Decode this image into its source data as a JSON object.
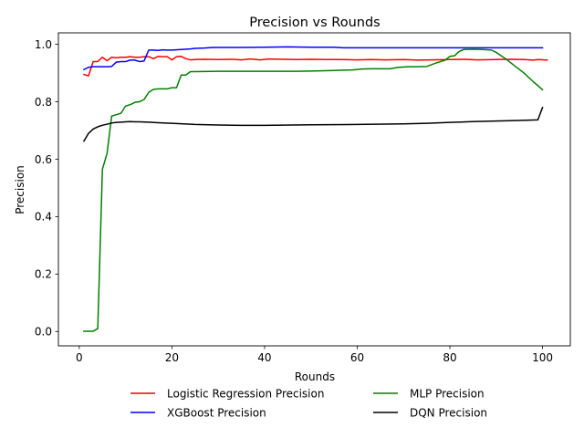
{
  "chart_data": {
    "type": "line",
    "title": "Precision vs Rounds",
    "xlabel": "Rounds",
    "ylabel": "Precision",
    "xlim": [
      -4.5,
      106
    ],
    "ylim": [
      -0.05,
      1.04
    ],
    "xticks": [
      0,
      20,
      40,
      60,
      80,
      100
    ],
    "yticks": [
      0.0,
      0.2,
      0.4,
      0.6,
      0.8,
      1.0
    ],
    "xtick_labels": [
      "0",
      "20",
      "40",
      "60",
      "80",
      "100"
    ],
    "ytick_labels": [
      "0.0",
      "0.2",
      "0.4",
      "0.6",
      "0.8",
      "1.0"
    ],
    "grid": false,
    "legend_position": "below plot, two columns",
    "series": [
      {
        "name": "Logistic Regression Precision",
        "color": "#ff0000",
        "points": [
          [
            1,
            0.895
          ],
          [
            2,
            0.89
          ],
          [
            3,
            0.94
          ],
          [
            4,
            0.94
          ],
          [
            5,
            0.955
          ],
          [
            6,
            0.943
          ],
          [
            7,
            0.955
          ],
          [
            8,
            0.953
          ],
          [
            9,
            0.955
          ],
          [
            10,
            0.955
          ],
          [
            11,
            0.957
          ],
          [
            12,
            0.955
          ],
          [
            13,
            0.955
          ],
          [
            14,
            0.957
          ],
          [
            15,
            0.957
          ],
          [
            16,
            0.95
          ],
          [
            17,
            0.958
          ],
          [
            18,
            0.957
          ],
          [
            19,
            0.957
          ],
          [
            20,
            0.946
          ],
          [
            21,
            0.957
          ],
          [
            22,
            0.958
          ],
          [
            23,
            0.95
          ],
          [
            24,
            0.946
          ],
          [
            25,
            0.947
          ],
          [
            27,
            0.948
          ],
          [
            30,
            0.947
          ],
          [
            33,
            0.948
          ],
          [
            35,
            0.946
          ],
          [
            37,
            0.949
          ],
          [
            39,
            0.946
          ],
          [
            41,
            0.949
          ],
          [
            44,
            0.948
          ],
          [
            47,
            0.947
          ],
          [
            50,
            0.948
          ],
          [
            53,
            0.947
          ],
          [
            56,
            0.947
          ],
          [
            60,
            0.946
          ],
          [
            63,
            0.947
          ],
          [
            66,
            0.946
          ],
          [
            70,
            0.947
          ],
          [
            73,
            0.945
          ],
          [
            76,
            0.946
          ],
          [
            80,
            0.947
          ],
          [
            83,
            0.948
          ],
          [
            86,
            0.946
          ],
          [
            90,
            0.947
          ],
          [
            93,
            0.948
          ],
          [
            96,
            0.947
          ],
          [
            98,
            0.945
          ],
          [
            99,
            0.947
          ],
          [
            101,
            0.945
          ]
        ]
      },
      {
        "name": "XGBoost Precision",
        "color": "#0000ff",
        "points": [
          [
            1,
            0.912
          ],
          [
            2,
            0.92
          ],
          [
            3,
            0.922
          ],
          [
            4,
            0.922
          ],
          [
            5,
            0.922
          ],
          [
            6,
            0.922
          ],
          [
            7,
            0.923
          ],
          [
            8,
            0.938
          ],
          [
            9,
            0.94
          ],
          [
            10,
            0.94
          ],
          [
            11,
            0.945
          ],
          [
            12,
            0.945
          ],
          [
            13,
            0.94
          ],
          [
            14,
            0.942
          ],
          [
            15,
            0.98
          ],
          [
            16,
            0.98
          ],
          [
            17,
            0.979
          ],
          [
            18,
            0.981
          ],
          [
            19,
            0.98
          ],
          [
            20,
            0.98
          ],
          [
            22,
            0.982
          ],
          [
            24,
            0.984
          ],
          [
            25,
            0.986
          ],
          [
            27,
            0.987
          ],
          [
            29,
            0.989
          ],
          [
            35,
            0.989
          ],
          [
            40,
            0.99
          ],
          [
            45,
            0.991
          ],
          [
            50,
            0.99
          ],
          [
            55,
            0.99
          ],
          [
            57,
            0.988
          ],
          [
            60,
            0.988
          ],
          [
            70,
            0.988
          ],
          [
            80,
            0.988
          ],
          [
            90,
            0.988
          ],
          [
            100,
            0.988
          ]
        ]
      },
      {
        "name": "MLP Precision",
        "color": "#008000",
        "points": [
          [
            1,
            0.001
          ],
          [
            2,
            0.001
          ],
          [
            3,
            0.001
          ],
          [
            4,
            0.01
          ],
          [
            5,
            0.565
          ],
          [
            6,
            0.62
          ],
          [
            7,
            0.75
          ],
          [
            8,
            0.755
          ],
          [
            9,
            0.76
          ],
          [
            10,
            0.785
          ],
          [
            11,
            0.79
          ],
          [
            12,
            0.798
          ],
          [
            13,
            0.8
          ],
          [
            14,
            0.808
          ],
          [
            15,
            0.833
          ],
          [
            16,
            0.843
          ],
          [
            17,
            0.845
          ],
          [
            18,
            0.845
          ],
          [
            19,
            0.845
          ],
          [
            20,
            0.849
          ],
          [
            21,
            0.849
          ],
          [
            22,
            0.893
          ],
          [
            23,
            0.893
          ],
          [
            24,
            0.905
          ],
          [
            25,
            0.905
          ],
          [
            30,
            0.906
          ],
          [
            40,
            0.906
          ],
          [
            47,
            0.906
          ],
          [
            50,
            0.907
          ],
          [
            55,
            0.909
          ],
          [
            57,
            0.91
          ],
          [
            59,
            0.911
          ],
          [
            61,
            0.914
          ],
          [
            63,
            0.915
          ],
          [
            67,
            0.915
          ],
          [
            69,
            0.92
          ],
          [
            71,
            0.922
          ],
          [
            73,
            0.922
          ],
          [
            75,
            0.923
          ],
          [
            77,
            0.935
          ],
          [
            79,
            0.945
          ],
          [
            80,
            0.958
          ],
          [
            81,
            0.96
          ],
          [
            82,
            0.975
          ],
          [
            83,
            0.982
          ],
          [
            85,
            0.983
          ],
          [
            87,
            0.982
          ],
          [
            89,
            0.98
          ],
          [
            90,
            0.972
          ],
          [
            92,
            0.95
          ],
          [
            94,
            0.925
          ],
          [
            96,
            0.9
          ],
          [
            98,
            0.87
          ],
          [
            100,
            0.842
          ]
        ]
      },
      {
        "name": "DQN Precision",
        "color": "#000000",
        "points": [
          [
            1,
            0.663
          ],
          [
            2,
            0.69
          ],
          [
            3,
            0.705
          ],
          [
            4,
            0.713
          ],
          [
            5,
            0.718
          ],
          [
            6,
            0.722
          ],
          [
            7,
            0.726
          ],
          [
            8,
            0.728
          ],
          [
            9,
            0.729
          ],
          [
            10,
            0.73
          ],
          [
            11,
            0.731
          ],
          [
            12,
            0.73
          ],
          [
            13,
            0.73
          ],
          [
            15,
            0.729
          ],
          [
            17,
            0.727
          ],
          [
            20,
            0.725
          ],
          [
            25,
            0.721
          ],
          [
            30,
            0.719
          ],
          [
            35,
            0.718
          ],
          [
            40,
            0.718
          ],
          [
            50,
            0.72
          ],
          [
            60,
            0.721
          ],
          [
            70,
            0.723
          ],
          [
            75,
            0.725
          ],
          [
            80,
            0.728
          ],
          [
            85,
            0.731
          ],
          [
            90,
            0.733
          ],
          [
            95,
            0.735
          ],
          [
            99,
            0.737
          ],
          [
            100,
            0.78
          ]
        ]
      }
    ]
  }
}
